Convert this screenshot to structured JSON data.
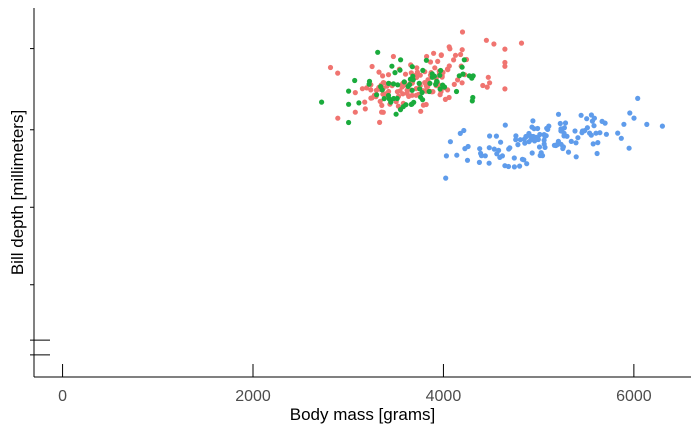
{
  "chart_data": {
    "type": "scatter",
    "xlabel": "Body mass [grams]",
    "ylabel": "Bill depth [millimeters]",
    "xlim": [
      -300,
      6600
    ],
    "ylim": [
      0,
      10
    ],
    "x_ticks": [
      {
        "value": 0,
        "label": "0"
      },
      {
        "value": 2000,
        "label": "2000"
      },
      {
        "value": 4000,
        "label": "4000"
      },
      {
        "value": 6000,
        "label": "6000"
      }
    ],
    "y_ticks": [
      0.6,
      1.0,
      2.5,
      4.6,
      6.7,
      8.9
    ],
    "grid": false,
    "legend": "none",
    "series": [
      {
        "color": "#f07470",
        "clusters": [
          {
            "cx": 3700,
            "cy": 7.95,
            "sx": 430,
            "sy": 0.38,
            "n": 146,
            "slope": 0.00045
          }
        ]
      },
      {
        "color": "#1aab3c",
        "clusters": [
          {
            "cx": 3730,
            "cy": 7.95,
            "sx": 330,
            "sy": 0.33,
            "n": 68,
            "slope": 0.00045
          }
        ]
      },
      {
        "color": "#5f9ceb",
        "clusters": [
          {
            "cx": 5080,
            "cy": 6.45,
            "sx": 480,
            "sy": 0.28,
            "n": 120,
            "slope": 0.00042
          }
        ]
      }
    ],
    "outliers": [
      {
        "x": 2720,
        "y": 7.45,
        "color": "#1aab3c"
      },
      {
        "x": 4820,
        "y": 9.05,
        "color": "#f07470"
      },
      {
        "x": 3330,
        "y": 6.9,
        "color": "#f07470"
      },
      {
        "x": 4390,
        "y": 6.06,
        "color": "#5f9ceb"
      },
      {
        "x": 6300,
        "y": 6.8,
        "color": "#5f9ceb"
      },
      {
        "x": 6040,
        "y": 7.55,
        "color": "#5f9ceb"
      },
      {
        "x": 5040,
        "y": 6.0,
        "color": "#5f9ceb"
      },
      {
        "x": 4200,
        "y": 9.35,
        "color": "#f07470"
      },
      {
        "x": 3310,
        "y": 8.8,
        "color": "#1aab3c"
      }
    ]
  }
}
